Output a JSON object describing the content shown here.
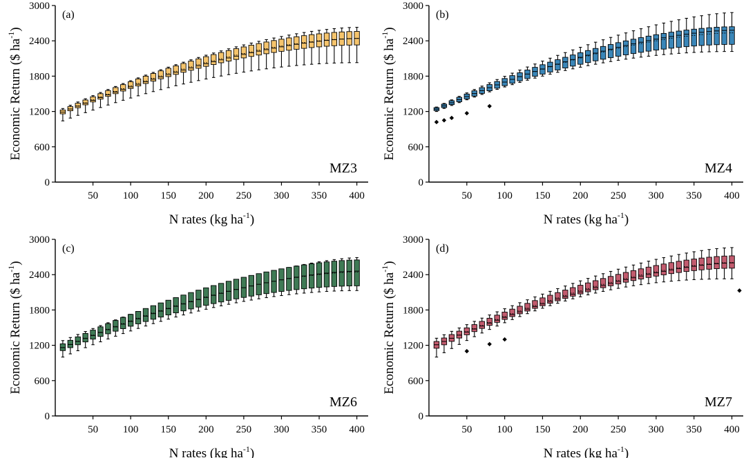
{
  "figure": {
    "colors": {
      "axis": "#000000",
      "whisker": "#000000",
      "outlier": "#000000"
    }
  },
  "chart_data": [
    {
      "type": "box",
      "panel_label": "(a)",
      "zone": "MZ3",
      "xlabel": "N rates (kg ha-1)",
      "xlabel_main": "N rates (kg ha",
      "xlabel_sup": "-1",
      "xlabel_end": ")",
      "ylabel": "Economic Return ($ ha-1)",
      "ylabel_main": "Economic Return ($ ha",
      "ylabel_sup": "-1",
      "ylabel_end": ")",
      "xlim": [
        0,
        415
      ],
      "ylim": [
        0,
        3000
      ],
      "xticks": [
        50,
        100,
        150,
        200,
        250,
        300,
        350,
        400
      ],
      "yticks": [
        0,
        600,
        1200,
        1800,
        2400,
        3000
      ],
      "box_color": "#f5c46c",
      "n_start": 10,
      "n_step": 10,
      "n_count": 40,
      "median": {
        "start": 1190,
        "end": 2440,
        "shape": 1.6
      },
      "q1": {
        "start": 1160,
        "end": 2330,
        "shape": 1.75
      },
      "q3": {
        "start": 1225,
        "end": 2560,
        "shape": 1.7
      },
      "whisker_low": {
        "start": 1040,
        "end": 2030,
        "shape": 1.9
      },
      "whisker_high": {
        "start": 1250,
        "end": 2630,
        "shape": 1.6
      },
      "outliers": []
    },
    {
      "type": "box",
      "panel_label": "(b)",
      "zone": "MZ4",
      "xlabel": "N rates (kg ha-1)",
      "xlabel_main": "N rates (kg ha",
      "xlabel_sup": "-1",
      "xlabel_end": ")",
      "ylabel": "Economic Return ($ ha-1)",
      "ylabel_main": "Economic Return ($ ha",
      "ylabel_sup": "-1",
      "ylabel_end": ")",
      "xlim": [
        0,
        415
      ],
      "ylim": [
        0,
        3000
      ],
      "xticks": [
        50,
        100,
        150,
        200,
        250,
        300,
        350,
        400
      ],
      "yticks": [
        0,
        600,
        1200,
        1800,
        2400,
        3000
      ],
      "box_color": "#3a86b8",
      "n_start": 10,
      "n_step": 10,
      "n_count": 40,
      "median": {
        "start": 1240,
        "end": 2580,
        "shape": 1.6
      },
      "q1": {
        "start": 1215,
        "end": 2340,
        "shape": 1.8
      },
      "q3": {
        "start": 1265,
        "end": 2640,
        "shape": 1.7
      },
      "whisker_low": {
        "start": 1200,
        "end": 2220,
        "shape": 2.0
      },
      "whisker_high": {
        "start": 1275,
        "end": 2880,
        "shape": 1.5
      },
      "outliers": [
        [
          10,
          1020
        ],
        [
          20,
          1050
        ],
        [
          30,
          1090
        ],
        [
          50,
          1170
        ],
        [
          80,
          1290
        ]
      ]
    },
    {
      "type": "box",
      "panel_label": "(c)",
      "zone": "MZ6",
      "xlabel": "N rates (kg ha-1)",
      "xlabel_main": "N rates (kg ha",
      "xlabel_sup": "-1",
      "xlabel_end": ")",
      "ylabel": "Economic Return ($ ha-1)",
      "ylabel_main": "Economic Return ($ ha",
      "ylabel_sup": "-1",
      "ylabel_end": ")",
      "xlim": [
        0,
        415
      ],
      "ylim": [
        0,
        3000
      ],
      "xticks": [
        50,
        100,
        150,
        200,
        250,
        300,
        350,
        400
      ],
      "yticks": [
        0,
        600,
        1200,
        1800,
        2400,
        3000
      ],
      "box_color": "#3f7a55",
      "n_start": 10,
      "n_step": 10,
      "n_count": 40,
      "median": {
        "start": 1160,
        "end": 2460,
        "shape": 1.6
      },
      "q1": {
        "start": 1110,
        "end": 2210,
        "shape": 1.8
      },
      "q3": {
        "start": 1225,
        "end": 2650,
        "shape": 1.65
      },
      "whisker_low": {
        "start": 1000,
        "end": 2130,
        "shape": 1.9
      },
      "whisker_high": {
        "start": 1280,
        "end": 2690,
        "shape": 1.45
      },
      "outliers": []
    },
    {
      "type": "box",
      "panel_label": "(d)",
      "zone": "MZ7",
      "xlabel": "N rates (kg ha-1)",
      "xlabel_main": "N rates (kg ha",
      "xlabel_sup": "-1",
      "xlabel_end": ")",
      "ylabel": "Economic Return ($ ha-1)",
      "ylabel_main": "Economic Return ($ ha",
      "ylabel_sup": "-1",
      "ylabel_end": ")",
      "xlim": [
        0,
        415
      ],
      "ylim": [
        0,
        3000
      ],
      "xticks": [
        50,
        100,
        150,
        200,
        250,
        300,
        350,
        400
      ],
      "yticks": [
        0,
        600,
        1200,
        1800,
        2400,
        3000
      ],
      "box_color": "#c25b6e",
      "n_start": 10,
      "n_step": 10,
      "n_count": 40,
      "median": {
        "start": 1210,
        "end": 2600,
        "shape": 1.55
      },
      "q1": {
        "start": 1150,
        "end": 2510,
        "shape": 1.7
      },
      "q3": {
        "start": 1265,
        "end": 2720,
        "shape": 1.6
      },
      "whisker_low": {
        "start": 1000,
        "end": 2330,
        "shape": 2.2
      },
      "whisker_high": {
        "start": 1320,
        "end": 2860,
        "shape": 1.5
      },
      "outliers": [
        [
          50,
          1100
        ],
        [
          80,
          1220
        ],
        [
          100,
          1300
        ],
        [
          410,
          2130
        ]
      ]
    }
  ]
}
